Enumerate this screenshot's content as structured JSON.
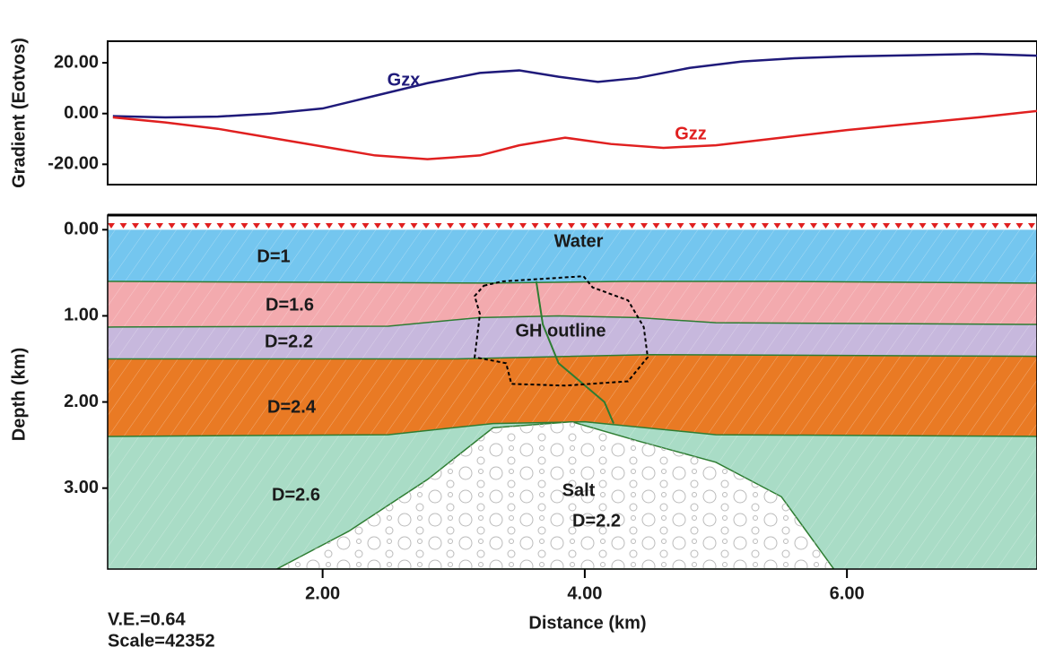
{
  "chart_data": [
    {
      "type": "line",
      "ylabel": "Gradient (Eotvos)",
      "xlim": [
        0.36,
        7.45
      ],
      "ylim": [
        -28,
        28.5
      ],
      "yticks": [
        {
          "value": 20,
          "label": "20.00"
        },
        {
          "value": 0,
          "label": "0.00"
        },
        {
          "value": -20,
          "label": "-20.00"
        }
      ],
      "series": [
        {
          "name": "Gzx",
          "color": "#1f1a7a",
          "x": [
            0.4,
            0.8,
            1.2,
            1.6,
            2.0,
            2.4,
            2.8,
            3.2,
            3.5,
            3.8,
            4.1,
            4.4,
            4.8,
            5.2,
            5.6,
            6.0,
            6.5,
            7.0,
            7.45
          ],
          "values": [
            -1,
            -1.5,
            -1.2,
            0,
            2,
            7,
            12,
            16,
            17,
            14.5,
            12.5,
            14,
            18,
            20.5,
            21.8,
            22.5,
            23,
            23.5,
            22.8
          ]
        },
        {
          "name": "Gzz",
          "color": "#e02020",
          "x": [
            0.4,
            0.8,
            1.2,
            1.6,
            2.0,
            2.4,
            2.8,
            3.2,
            3.5,
            3.85,
            4.2,
            4.6,
            5.0,
            5.5,
            6.0,
            6.5,
            7.0,
            7.45
          ],
          "values": [
            -1.5,
            -3.5,
            -6,
            -9.5,
            -13,
            -16.5,
            -18,
            -16.5,
            -12.5,
            -9.5,
            -12,
            -13.5,
            -12.5,
            -9.5,
            -6.5,
            -4,
            -1.5,
            1
          ]
        }
      ]
    },
    {
      "type": "section",
      "xlabel": "Distance (km)",
      "ylabel": "Depth (km)",
      "xlim": [
        0.36,
        7.45
      ],
      "ylim": [
        3.94,
        -0.17
      ],
      "xticks": [
        {
          "value": 2,
          "label": "2.00"
        },
        {
          "value": 4,
          "label": "4.00"
        },
        {
          "value": 6,
          "label": "6.00"
        }
      ],
      "yticks": [
        {
          "value": 0,
          "label": "0.00"
        },
        {
          "value": 1,
          "label": "1.00"
        },
        {
          "value": 2,
          "label": "2.00"
        },
        {
          "value": 3,
          "label": "3.00"
        }
      ],
      "layers": [
        {
          "name": "Water",
          "label": "D=1",
          "color": "#74c6ef",
          "top": [
            [
              0.36,
              0
            ],
            [
              7.45,
              0
            ]
          ]
        },
        {
          "label": "D=1.6",
          "color": "#f3aaae",
          "top": [
            [
              0.36,
              0.6
            ],
            [
              3.3,
              0.62
            ],
            [
              4.3,
              0.6
            ],
            [
              5.5,
              0.6
            ],
            [
              7.45,
              0.62
            ]
          ]
        },
        {
          "label": "D=2.2",
          "color": "#c7b8dd",
          "top": [
            [
              0.36,
              1.13
            ],
            [
              2.5,
              1.12
            ],
            [
              3.2,
              1.02
            ],
            [
              3.8,
              1.0
            ],
            [
              4.4,
              1.02
            ],
            [
              5.0,
              1.08
            ],
            [
              7.45,
              1.1
            ]
          ]
        },
        {
          "label": "D=2.4",
          "color": "#e97a24",
          "top": [
            [
              0.36,
              1.5
            ],
            [
              3.0,
              1.5
            ],
            [
              4.5,
              1.45
            ],
            [
              7.45,
              1.47
            ]
          ]
        },
        {
          "label": "D=2.6",
          "color": "#a9dcc6",
          "top": [
            [
              0.36,
              2.4
            ],
            [
              2.5,
              2.38
            ],
            [
              3.3,
              2.25
            ],
            [
              4.0,
              2.23
            ],
            [
              5.0,
              2.38
            ],
            [
              7.45,
              2.4
            ]
          ]
        }
      ],
      "salt": {
        "name": "Salt",
        "label": "D=2.2",
        "outline": [
          [
            1.65,
            3.94
          ],
          [
            2.2,
            3.5
          ],
          [
            2.8,
            2.9
          ],
          [
            3.3,
            2.3
          ],
          [
            3.9,
            2.23
          ],
          [
            4.4,
            2.45
          ],
          [
            5.0,
            2.7
          ],
          [
            5.5,
            3.1
          ],
          [
            5.9,
            3.94
          ]
        ]
      },
      "fault": [
        [
          3.63,
          0.6
        ],
        [
          3.68,
          1.1
        ],
        [
          3.8,
          1.55
        ],
        [
          4.15,
          2.0
        ],
        [
          4.22,
          2.25
        ]
      ],
      "gh_outline": {
        "label": "GH outline",
        "outline": [
          [
            3.23,
            0.65
          ],
          [
            3.37,
            0.6
          ],
          [
            3.99,
            0.54
          ],
          [
            4.06,
            0.67
          ],
          [
            4.33,
            0.82
          ],
          [
            4.45,
            1.13
          ],
          [
            4.48,
            1.48
          ],
          [
            4.33,
            1.76
          ],
          [
            3.85,
            1.81
          ],
          [
            3.44,
            1.79
          ],
          [
            3.4,
            1.55
          ],
          [
            3.16,
            1.48
          ],
          [
            3.2,
            0.98
          ],
          [
            3.16,
            0.77
          ]
        ]
      },
      "annotations": [
        "V.E.=0.64",
        "Scale=42352"
      ]
    }
  ]
}
